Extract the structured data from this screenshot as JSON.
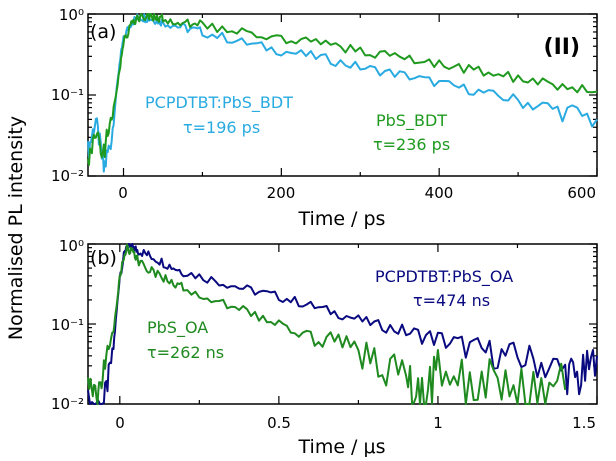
{
  "figure": {
    "ylabel": "Normalised PL intensity",
    "colors": {
      "pcpdtbt_bdt": "#29abe2",
      "pbs_bdt": "#1f9a1f",
      "pcpdtbt_oa": "#0a0a80",
      "pbs_oa": "#1f8a1f"
    }
  },
  "chart_data": [
    {
      "type": "line",
      "panel_label": "(a)",
      "tag": "(II)",
      "xlabel": "Time / ps",
      "ylabel": "Normalised PL intensity",
      "xlim": [
        -45,
        600
      ],
      "ylim": [
        0.01,
        1
      ],
      "yscale": "log",
      "xticks": [
        "0",
        "200",
        "400",
        "600"
      ],
      "yticks": [
        "10⁻²",
        "10⁻¹",
        "10⁰"
      ],
      "series": [
        {
          "name": "PCPDTBT:PbS_BDT",
          "lifetime": "τ=196 ps",
          "color": "#29abe2",
          "x": [
            -45,
            -35,
            -25,
            -15,
            -5,
            0,
            10,
            20,
            30,
            40,
            50,
            75,
            100,
            150,
            200,
            250,
            300,
            350,
            400,
            450,
            500,
            550,
            600
          ],
          "y": [
            0.02,
            0.05,
            0.012,
            0.03,
            0.25,
            0.5,
            0.8,
            0.92,
            0.9,
            0.86,
            0.8,
            0.68,
            0.6,
            0.45,
            0.35,
            0.29,
            0.22,
            0.18,
            0.14,
            0.11,
            0.085,
            0.065,
            0.05
          ]
        },
        {
          "name": "PbS_BDT",
          "lifetime": "τ=236 ps",
          "color": "#1f9a1f",
          "x": [
            -45,
            -35,
            -25,
            -15,
            -5,
            0,
            10,
            20,
            30,
            40,
            50,
            75,
            100,
            150,
            200,
            250,
            300,
            350,
            400,
            450,
            500,
            550,
            600
          ],
          "y": [
            0.015,
            0.03,
            0.02,
            0.05,
            0.2,
            0.45,
            0.75,
            0.9,
            0.95,
            0.9,
            0.86,
            0.8,
            0.72,
            0.6,
            0.5,
            0.42,
            0.35,
            0.29,
            0.24,
            0.2,
            0.16,
            0.13,
            0.11
          ]
        }
      ]
    },
    {
      "type": "line",
      "panel_label": "(b)",
      "xlabel": "Time / μs",
      "ylabel": "Normalised PL intensity",
      "xlim": [
        -0.1,
        1.5
      ],
      "ylim": [
        0.01,
        1
      ],
      "yscale": "log",
      "xticks": [
        "0",
        "0.5",
        "1",
        "1.5"
      ],
      "yticks": [
        "10⁻²",
        "10⁻¹",
        "10⁰"
      ],
      "series": [
        {
          "name": "PCPDTBT:PbS_OA",
          "lifetime": "τ=474 ns",
          "color": "#0a0a80",
          "x": [
            -0.1,
            -0.05,
            -0.02,
            0.0,
            0.02,
            0.04,
            0.06,
            0.1,
            0.15,
            0.2,
            0.3,
            0.4,
            0.5,
            0.6,
            0.7,
            0.8,
            0.9,
            1.0,
            1.1,
            1.2,
            1.3,
            1.4,
            1.45,
            1.5
          ],
          "y": [
            0.01,
            0.01,
            0.05,
            0.4,
            0.95,
            0.9,
            0.82,
            0.7,
            0.55,
            0.45,
            0.35,
            0.27,
            0.22,
            0.17,
            0.13,
            0.1,
            0.08,
            0.065,
            0.05,
            0.04,
            0.035,
            0.025,
            0.02,
            0.04
          ]
        },
        {
          "name": "PbS_OA",
          "lifetime": "τ=262 ns",
          "color": "#1f8a1f",
          "x": [
            -0.1,
            -0.07,
            -0.05,
            -0.02,
            0.0,
            0.02,
            0.04,
            0.06,
            0.1,
            0.15,
            0.2,
            0.3,
            0.4,
            0.5,
            0.6,
            0.7,
            0.8,
            0.9,
            0.95,
            1.0,
            1.1,
            1.2,
            1.3,
            1.4
          ],
          "y": [
            0.02,
            0.01,
            0.03,
            0.08,
            0.4,
            0.9,
            0.8,
            0.6,
            0.45,
            0.35,
            0.28,
            0.2,
            0.14,
            0.1,
            0.07,
            0.05,
            0.035,
            0.02,
            0.01,
            0.03,
            0.015,
            0.02,
            0.01,
            0.015
          ]
        }
      ]
    }
  ]
}
